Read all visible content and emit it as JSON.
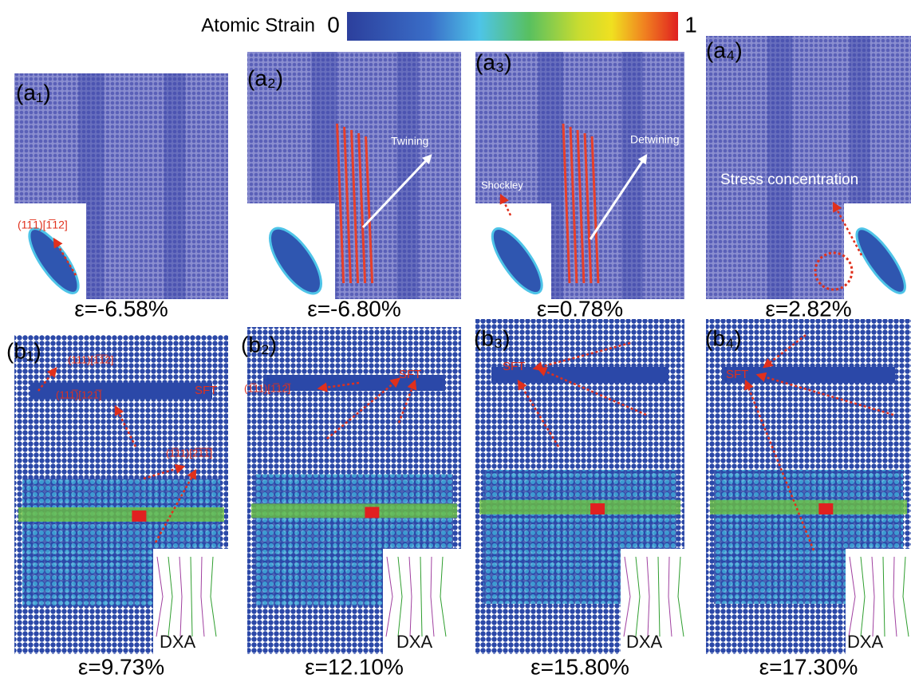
{
  "colorbar": {
    "title": "Atomic Strain",
    "min_label": "0",
    "max_label": "1"
  },
  "panels": [
    {
      "label": "(a₁)",
      "strain": "ε=-6.58%",
      "annotations": [
        "(11̅1)[1̅12]"
      ]
    },
    {
      "label": "(a₂)",
      "strain": "ε=-6.80%",
      "annotations": [
        "Twining"
      ]
    },
    {
      "label": "(a₃)",
      "strain": "ε=0.78%",
      "annotations": [
        "Shockley",
        "Detwining"
      ]
    },
    {
      "label": "(a₄)",
      "strain": "ε=2.82%",
      "annotations": [
        "Stress concentration"
      ]
    },
    {
      "label": "(b₁)",
      "strain": "ε=9.73%",
      "annotations": [
        "(111)[1̅1̅2]",
        "(111̅)[121̅]",
        "SFT",
        "(1̅11)[2̅1̅1̅]",
        "DXA"
      ]
    },
    {
      "label": "(b₂)",
      "strain": "ε=12.10%",
      "annotations": [
        "(1̅11)[1̅12̅]",
        "SFT",
        "DXA"
      ]
    },
    {
      "label": "(b₃)",
      "strain": "ε=15.80%",
      "annotations": [
        "SFT",
        "DXA"
      ]
    },
    {
      "label": "(b₄)",
      "strain": "ε=17.30%",
      "annotations": [
        "SFT",
        "DXA"
      ]
    }
  ]
}
